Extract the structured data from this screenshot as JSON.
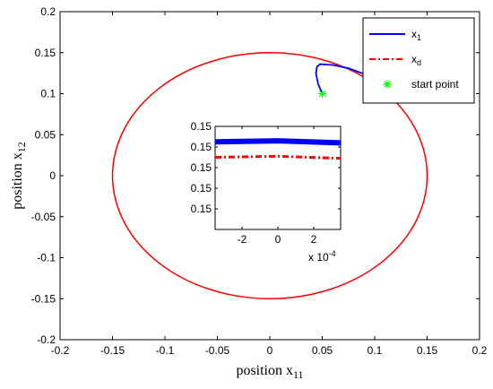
{
  "chart_data": [
    {
      "type": "line",
      "xlabel": "position x",
      "xlabel_sub": "11",
      "ylabel": "position x",
      "ylabel_sub": "12",
      "xlim": [
        -0.2,
        0.2
      ],
      "ylim": [
        -0.2,
        0.2
      ],
      "xticks": [
        -0.2,
        -0.15,
        -0.1,
        -0.05,
        0,
        0.05,
        0.1,
        0.15,
        0.2
      ],
      "xtick_labels": [
        "-0.2",
        "-0.15",
        "-0.1",
        "-0.05",
        "0",
        "0.05",
        "0.1",
        "0.15",
        "0.2"
      ],
      "yticks": [
        -0.2,
        -0.15,
        -0.1,
        -0.05,
        0,
        0.05,
        0.1,
        0.15,
        0.2
      ],
      "ytick_labels": [
        "-0.2",
        "-0.15",
        "-0.1",
        "-0.05",
        "0",
        "0.05",
        "0.1",
        "0.15",
        "0.2"
      ],
      "grid": false,
      "legend_placement": "top-right",
      "series": [
        {
          "name": "x",
          "name_sub": "1",
          "color": "#0000ff",
          "style": "solid",
          "shape": "circle-path",
          "radius": 0.15,
          "start_point": [
            0.05,
            0.1
          ],
          "transient_points": [
            [
              0.05,
              0.1
            ],
            [
              0.046,
              0.112
            ],
            [
              0.044,
              0.125
            ],
            [
              0.045,
              0.133
            ],
            [
              0.048,
              0.136
            ],
            [
              0.06,
              0.135
            ],
            [
              0.075,
              0.131
            ],
            [
              0.09,
              0.124
            ],
            [
              0.1,
              0.118
            ]
          ]
        },
        {
          "name": "x",
          "name_sub": "d",
          "color": "#ff0000",
          "style": "dash-dot",
          "shape": "circle",
          "center": [
            0,
            0
          ],
          "radius": 0.15
        },
        {
          "name": "start point",
          "color": "#00ff00",
          "style": "marker",
          "marker": "*",
          "point": [
            0.05,
            0.1
          ]
        }
      ]
    },
    {
      "type": "line",
      "inset": true,
      "xlim": [
        -0.00035,
        0.00035
      ],
      "ylim": [
        0.14993,
        0.15003
      ],
      "xticks": [
        -0.0002,
        0,
        0.0002
      ],
      "xtick_labels": [
        "-2",
        "0",
        "2"
      ],
      "x_multiplier": "x 10",
      "x_multiplier_exp": "-4",
      "yticks": [
        0.14995,
        0.14997,
        0.14999,
        0.15001,
        0.15003
      ],
      "ytick_labels": [
        "0.15",
        "0.15",
        "0.15",
        "0.15",
        "0.15"
      ],
      "series": [
        {
          "name": "x1",
          "color": "#0000ff",
          "x": [
            -0.00035,
            0,
            0.00035
          ],
          "y": [
            0.150015,
            0.150016,
            0.150014
          ]
        },
        {
          "name": "xd",
          "color": "#ff0000",
          "x": [
            -0.00035,
            0,
            0.00035
          ],
          "y": [
            0.15,
            0.150001,
            0.149999
          ]
        }
      ]
    }
  ]
}
